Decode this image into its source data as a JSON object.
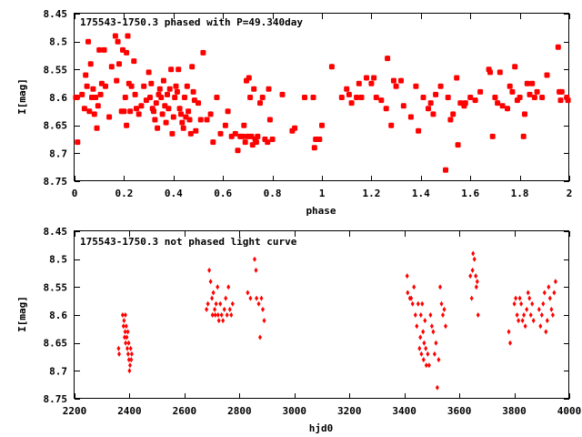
{
  "marker_color": "#ff0000",
  "chart_data": [
    {
      "type": "scatter",
      "title": "175543-1750.3 phased with P=49.340day",
      "xlabel": "phase",
      "ylabel": "I[mag]",
      "xlim": [
        0,
        2
      ],
      "ylim": [
        8.75,
        8.45
      ],
      "y_inverted": true,
      "grid": false,
      "x_ticks": [
        "0",
        "0.2",
        "0.4",
        "0.6",
        "0.8",
        "1",
        "1.2",
        "1.4",
        "1.6",
        "1.8",
        "2"
      ],
      "y_ticks": [
        "8.45",
        "8.5",
        "8.55",
        "8.6",
        "8.65",
        "8.7",
        "8.75"
      ],
      "marker": "filled-circle",
      "points": [
        [
          0.005,
          8.6
        ],
        [
          0.01,
          8.6
        ],
        [
          0.012,
          8.68
        ],
        [
          0.03,
          8.595
        ],
        [
          0.04,
          8.62
        ],
        [
          0.045,
          8.56
        ],
        [
          0.05,
          8.58
        ],
        [
          0.055,
          8.5
        ],
        [
          0.06,
          8.625
        ],
        [
          0.065,
          8.54
        ],
        [
          0.07,
          8.6
        ],
        [
          0.075,
          8.585
        ],
        [
          0.08,
          8.63
        ],
        [
          0.085,
          8.6
        ],
        [
          0.09,
          8.655
        ],
        [
          0.095,
          8.615
        ],
        [
          0.1,
          8.515
        ],
        [
          0.105,
          8.595
        ],
        [
          0.11,
          8.575
        ],
        [
          0.12,
          8.515
        ],
        [
          0.125,
          8.58
        ],
        [
          0.14,
          8.635
        ],
        [
          0.15,
          8.545
        ],
        [
          0.165,
          8.49
        ],
        [
          0.17,
          8.57
        ],
        [
          0.175,
          8.5
        ],
        [
          0.18,
          8.54
        ],
        [
          0.19,
          8.625
        ],
        [
          0.195,
          8.515
        ],
        [
          0.2,
          8.625
        ],
        [
          0.205,
          8.6
        ],
        [
          0.21,
          8.65
        ],
        [
          0.21,
          8.52
        ],
        [
          0.215,
          8.49
        ],
        [
          0.22,
          8.575
        ],
        [
          0.225,
          8.625
        ],
        [
          0.23,
          8.58
        ],
        [
          0.24,
          8.535
        ],
        [
          0.245,
          8.595
        ],
        [
          0.25,
          8.62
        ],
        [
          0.26,
          8.63
        ],
        [
          0.27,
          8.615
        ],
        [
          0.28,
          8.58
        ],
        [
          0.29,
          8.605
        ],
        [
          0.3,
          8.555
        ],
        [
          0.305,
          8.6
        ],
        [
          0.31,
          8.575
        ],
        [
          0.315,
          8.62
        ],
        [
          0.32,
          8.625
        ],
        [
          0.325,
          8.64
        ],
        [
          0.33,
          8.61
        ],
        [
          0.335,
          8.655
        ],
        [
          0.34,
          8.595
        ],
        [
          0.345,
          8.585
        ],
        [
          0.35,
          8.6
        ],
        [
          0.355,
          8.63
        ],
        [
          0.36,
          8.57
        ],
        [
          0.365,
          8.615
        ],
        [
          0.37,
          8.645
        ],
        [
          0.375,
          8.595
        ],
        [
          0.38,
          8.62
        ],
        [
          0.385,
          8.585
        ],
        [
          0.39,
          8.55
        ],
        [
          0.395,
          8.665
        ],
        [
          0.4,
          8.635
        ],
        [
          0.405,
          8.6
        ],
        [
          0.41,
          8.58
        ],
        [
          0.415,
          8.59
        ],
        [
          0.42,
          8.55
        ],
        [
          0.425,
          8.62
        ],
        [
          0.43,
          8.63
        ],
        [
          0.435,
          8.645
        ],
        [
          0.44,
          8.655
        ],
        [
          0.445,
          8.6
        ],
        [
          0.45,
          8.635
        ],
        [
          0.455,
          8.58
        ],
        [
          0.46,
          8.625
        ],
        [
          0.465,
          8.64
        ],
        [
          0.47,
          8.665
        ],
        [
          0.475,
          8.545
        ],
        [
          0.48,
          8.59
        ],
        [
          0.485,
          8.605
        ],
        [
          0.49,
          8.66
        ],
        [
          0.5,
          8.61
        ],
        [
          0.51,
          8.64
        ],
        [
          0.52,
          8.52
        ],
        [
          0.535,
          8.64
        ],
        [
          0.55,
          8.63
        ],
        [
          0.56,
          8.68
        ],
        [
          0.575,
          8.6
        ],
        [
          0.59,
          8.665
        ],
        [
          0.61,
          8.65
        ],
        [
          0.62,
          8.625
        ],
        [
          0.635,
          8.67
        ],
        [
          0.65,
          8.665
        ],
        [
          0.66,
          8.695
        ],
        [
          0.67,
          8.67
        ],
        [
          0.68,
          8.67
        ],
        [
          0.685,
          8.65
        ],
        [
          0.69,
          8.68
        ],
        [
          0.695,
          8.57
        ],
        [
          0.7,
          8.67
        ],
        [
          0.705,
          8.565
        ],
        [
          0.71,
          8.6
        ],
        [
          0.715,
          8.67
        ],
        [
          0.72,
          8.685
        ],
        [
          0.725,
          8.585
        ],
        [
          0.73,
          8.675
        ],
        [
          0.735,
          8.68
        ],
        [
          0.74,
          8.67
        ],
        [
          0.75,
          8.61
        ],
        [
          0.76,
          8.6
        ],
        [
          0.77,
          8.675
        ],
        [
          0.78,
          8.68
        ],
        [
          0.785,
          8.585
        ],
        [
          0.79,
          8.64
        ],
        [
          0.8,
          8.675
        ],
        [
          0.84,
          8.595
        ],
        [
          0.88,
          8.66
        ],
        [
          0.89,
          8.655
        ],
        [
          0.93,
          8.6
        ],
        [
          0.965,
          8.6
        ],
        [
          0.97,
          8.69
        ],
        [
          0.975,
          8.675
        ],
        [
          0.99,
          8.675
        ],
        [
          1.0,
          8.65
        ],
        [
          1.04,
          8.545
        ],
        [
          1.08,
          8.6
        ],
        [
          1.1,
          8.585
        ],
        [
          1.11,
          8.595
        ],
        [
          1.12,
          8.61
        ],
        [
          1.14,
          8.6
        ],
        [
          1.15,
          8.575
        ],
        [
          1.16,
          8.6
        ],
        [
          1.18,
          8.565
        ],
        [
          1.2,
          8.575
        ],
        [
          1.21,
          8.565
        ],
        [
          1.22,
          8.6
        ],
        [
          1.24,
          8.605
        ],
        [
          1.26,
          8.62
        ],
        [
          1.265,
          8.53
        ],
        [
          1.28,
          8.65
        ],
        [
          1.29,
          8.57
        ],
        [
          1.3,
          8.58
        ],
        [
          1.32,
          8.57
        ],
        [
          1.33,
          8.615
        ],
        [
          1.36,
          8.635
        ],
        [
          1.38,
          8.58
        ],
        [
          1.39,
          8.66
        ],
        [
          1.41,
          8.6
        ],
        [
          1.43,
          8.62
        ],
        [
          1.44,
          8.61
        ],
        [
          1.45,
          8.63
        ],
        [
          1.46,
          8.595
        ],
        [
          1.48,
          8.58
        ],
        [
          1.5,
          8.73
        ],
        [
          1.51,
          8.6
        ],
        [
          1.52,
          8.64
        ],
        [
          1.53,
          8.63
        ],
        [
          1.545,
          8.565
        ],
        [
          1.55,
          8.685
        ],
        [
          1.56,
          8.61
        ],
        [
          1.575,
          8.615
        ],
        [
          1.58,
          8.61
        ],
        [
          1.6,
          8.6
        ],
        [
          1.62,
          8.605
        ],
        [
          1.64,
          8.59
        ],
        [
          1.675,
          8.55
        ],
        [
          1.68,
          8.555
        ],
        [
          1.69,
          8.67
        ],
        [
          1.7,
          8.6
        ],
        [
          1.71,
          8.61
        ],
        [
          1.72,
          8.555
        ],
        [
          1.73,
          8.615
        ],
        [
          1.75,
          8.62
        ],
        [
          1.76,
          8.58
        ],
        [
          1.77,
          8.59
        ],
        [
          1.78,
          8.545
        ],
        [
          1.79,
          8.605
        ],
        [
          1.8,
          8.6
        ],
        [
          1.815,
          8.67
        ],
        [
          1.82,
          8.63
        ],
        [
          1.83,
          8.575
        ],
        [
          1.84,
          8.595
        ],
        [
          1.85,
          8.575
        ],
        [
          1.86,
          8.6
        ],
        [
          1.87,
          8.59
        ],
        [
          1.89,
          8.6
        ],
        [
          1.91,
          8.56
        ],
        [
          1.955,
          8.51
        ],
        [
          1.96,
          8.59
        ],
        [
          1.965,
          8.605
        ],
        [
          1.97,
          8.59
        ],
        [
          1.99,
          8.6
        ],
        [
          1.995,
          8.605
        ]
      ]
    },
    {
      "type": "scatter",
      "title": "175543-1750.3 not phased light curve",
      "xlabel": "hjd0",
      "ylabel": "I[mag]",
      "xlim": [
        2200,
        4000
      ],
      "ylim": [
        8.75,
        8.45
      ],
      "y_inverted": true,
      "grid": false,
      "x_ticks": [
        "2200",
        "2400",
        "2600",
        "2800",
        "3000",
        "3200",
        "3400",
        "3600",
        "3800",
        "4000"
      ],
      "y_ticks": [
        "8.45",
        "8.5",
        "8.55",
        "8.6",
        "8.65",
        "8.7",
        "8.75"
      ],
      "marker": "small-diamond",
      "points": [
        [
          2360,
          8.66
        ],
        [
          2362,
          8.67
        ],
        [
          2375,
          8.6
        ],
        [
          2378,
          8.62
        ],
        [
          2380,
          8.61
        ],
        [
          2382,
          8.64
        ],
        [
          2384,
          8.63
        ],
        [
          2385,
          8.6
        ],
        [
          2386,
          8.65
        ],
        [
          2388,
          8.62
        ],
        [
          2390,
          8.64
        ],
        [
          2392,
          8.66
        ],
        [
          2394,
          8.63
        ],
        [
          2395,
          8.67
        ],
        [
          2397,
          8.65
        ],
        [
          2398,
          8.68
        ],
        [
          2400,
          8.7
        ],
        [
          2402,
          8.69
        ],
        [
          2404,
          8.66
        ],
        [
          2406,
          8.68
        ],
        [
          2408,
          8.67
        ],
        [
          2680,
          8.59
        ],
        [
          2685,
          8.58
        ],
        [
          2690,
          8.52
        ],
        [
          2695,
          8.54
        ],
        [
          2700,
          8.57
        ],
        [
          2702,
          8.6
        ],
        [
          2705,
          8.56
        ],
        [
          2710,
          8.59
        ],
        [
          2712,
          8.6
        ],
        [
          2715,
          8.58
        ],
        [
          2720,
          8.55
        ],
        [
          2722,
          8.6
        ],
        [
          2725,
          8.61
        ],
        [
          2730,
          8.58
        ],
        [
          2735,
          8.6
        ],
        [
          2740,
          8.61
        ],
        [
          2745,
          8.59
        ],
        [
          2750,
          8.57
        ],
        [
          2755,
          8.6
        ],
        [
          2760,
          8.55
        ],
        [
          2765,
          8.59
        ],
        [
          2770,
          8.6
        ],
        [
          2775,
          8.58
        ],
        [
          2830,
          8.56
        ],
        [
          2840,
          8.57
        ],
        [
          2855,
          8.5
        ],
        [
          2860,
          8.52
        ],
        [
          2862,
          8.57
        ],
        [
          2870,
          8.58
        ],
        [
          2875,
          8.64
        ],
        [
          2880,
          8.57
        ],
        [
          2885,
          8.59
        ],
        [
          2890,
          8.61
        ]
      ],
      "points_extra": [
        [
          3410,
          8.53
        ],
        [
          3412,
          8.56
        ],
        [
          3420,
          8.57
        ],
        [
          3425,
          8.57
        ],
        [
          3430,
          8.58
        ],
        [
          3435,
          8.55
        ],
        [
          3440,
          8.6
        ],
        [
          3445,
          8.62
        ],
        [
          3450,
          8.58
        ],
        [
          3455,
          8.66
        ],
        [
          3458,
          8.64
        ],
        [
          3460,
          8.6
        ],
        [
          3462,
          8.67
        ],
        [
          3465,
          8.58
        ],
        [
          3468,
          8.63
        ],
        [
          3470,
          8.68
        ],
        [
          3472,
          8.65
        ],
        [
          3475,
          8.61
        ],
        [
          3478,
          8.66
        ],
        [
          3480,
          8.69
        ],
        [
          3485,
          8.67
        ],
        [
          3490,
          8.69
        ],
        [
          3495,
          8.6
        ],
        [
          3500,
          8.62
        ],
        [
          3505,
          8.63
        ],
        [
          3510,
          8.67
        ],
        [
          3515,
          8.65
        ],
        [
          3520,
          8.73
        ],
        [
          3525,
          8.68
        ],
        [
          3530,
          8.55
        ],
        [
          3535,
          8.58
        ],
        [
          3540,
          8.6
        ],
        [
          3545,
          8.59
        ],
        [
          3550,
          8.62
        ],
        [
          3640,
          8.53
        ],
        [
          3645,
          8.57
        ],
        [
          3648,
          8.52
        ],
        [
          3650,
          8.49
        ],
        [
          3655,
          8.5
        ],
        [
          3660,
          8.53
        ],
        [
          3662,
          8.55
        ],
        [
          3665,
          8.54
        ],
        [
          3668,
          8.6
        ],
        [
          3780,
          8.63
        ],
        [
          3785,
          8.65
        ],
        [
          3800,
          8.58
        ],
        [
          3805,
          8.57
        ],
        [
          3810,
          8.6
        ],
        [
          3815,
          8.61
        ],
        [
          3820,
          8.57
        ],
        [
          3825,
          8.58
        ],
        [
          3830,
          8.61
        ],
        [
          3835,
          8.6
        ],
        [
          3840,
          8.62
        ],
        [
          3845,
          8.59
        ],
        [
          3850,
          8.56
        ],
        [
          3855,
          8.57
        ],
        [
          3860,
          8.6
        ],
        [
          3865,
          8.58
        ],
        [
          3870,
          8.61
        ],
        [
          3890,
          8.59
        ],
        [
          3895,
          8.62
        ],
        [
          3900,
          8.6
        ],
        [
          3905,
          8.58
        ],
        [
          3910,
          8.56
        ],
        [
          3915,
          8.63
        ],
        [
          3920,
          8.61
        ],
        [
          3925,
          8.55
        ],
        [
          3930,
          8.57
        ],
        [
          3935,
          8.59
        ],
        [
          3940,
          8.6
        ],
        [
          3945,
          8.56
        ],
        [
          3950,
          8.54
        ]
      ]
    }
  ]
}
